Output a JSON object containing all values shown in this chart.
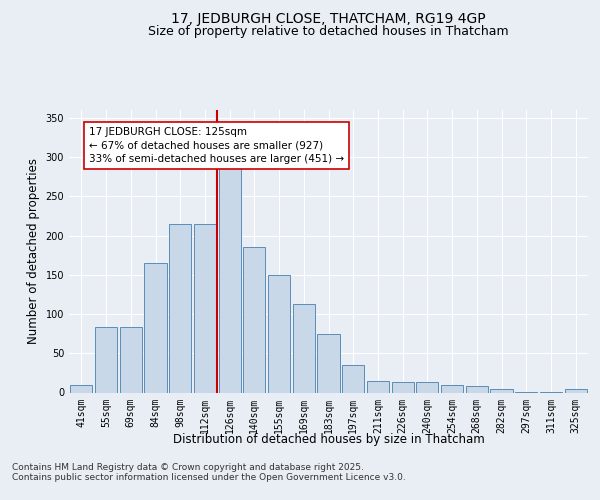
{
  "title": "17, JEDBURGH CLOSE, THATCHAM, RG19 4GP",
  "subtitle": "Size of property relative to detached houses in Thatcham",
  "xlabel": "Distribution of detached houses by size in Thatcham",
  "ylabel": "Number of detached properties",
  "categories": [
    "41sqm",
    "55sqm",
    "69sqm",
    "84sqm",
    "98sqm",
    "112sqm",
    "126sqm",
    "140sqm",
    "155sqm",
    "169sqm",
    "183sqm",
    "197sqm",
    "211sqm",
    "226sqm",
    "240sqm",
    "254sqm",
    "268sqm",
    "282sqm",
    "297sqm",
    "311sqm",
    "325sqm"
  ],
  "values": [
    10,
    83,
    83,
    165,
    215,
    215,
    290,
    185,
    150,
    113,
    75,
    35,
    15,
    13,
    13,
    9,
    8,
    4,
    1,
    1,
    4
  ],
  "bar_color": "#c8d8e8",
  "bar_edge_color": "#5b8db8",
  "bar_edge_width": 0.7,
  "vline_x": 5.5,
  "vline_color": "#cc0000",
  "annotation_text": "17 JEDBURGH CLOSE: 125sqm\n← 67% of detached houses are smaller (927)\n33% of semi-detached houses are larger (451) →",
  "annotation_box_color": "#ffffff",
  "annotation_box_edge": "#cc0000",
  "ylim": [
    0,
    360
  ],
  "yticks": [
    0,
    50,
    100,
    150,
    200,
    250,
    300,
    350
  ],
  "background_color": "#e8eef4",
  "plot_background": "#e8eef4",
  "footer": "Contains HM Land Registry data © Crown copyright and database right 2025.\nContains public sector information licensed under the Open Government Licence v3.0.",
  "title_fontsize": 10,
  "subtitle_fontsize": 9,
  "axis_label_fontsize": 8.5,
  "tick_fontsize": 7,
  "annotation_fontsize": 7.5,
  "footer_fontsize": 6.5
}
